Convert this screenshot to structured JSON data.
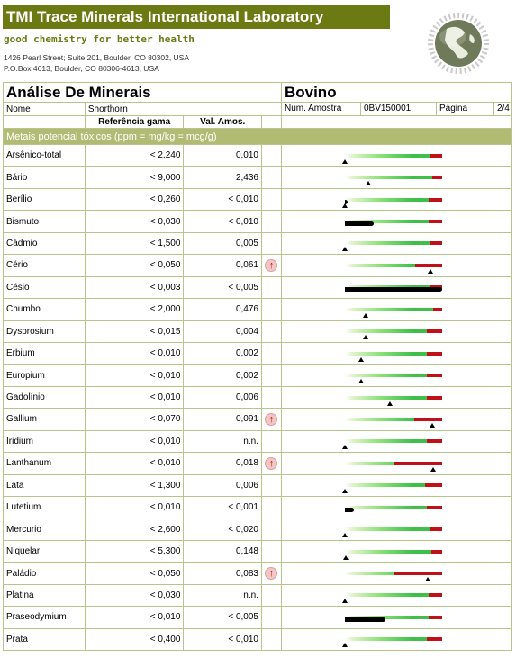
{
  "header": {
    "title": "TMI Trace Minerals International Laboratory",
    "slogan": "good chemistry for better health",
    "address1": "1426 Pearl Street; Suite 201, Boulder, CO 80302, USA",
    "address2": "P.O.Box 4613, Boulder, CO 80306-4613, USA"
  },
  "report": {
    "title": "Análise De Minerais",
    "species": "Bovino",
    "name_label": "Nome",
    "name_value": "Shorthorn",
    "sample_label": "Num. Amostra",
    "sample_value": "0BV150001",
    "page_label": "Página",
    "page_value": "2/4",
    "col_ref": "Referência gama",
    "col_val": "Val. Amos.",
    "section": "Metais potencial tóxicos (ppm = mg/kg = mcg/g)"
  },
  "colors": {
    "brand": "#6b7a12",
    "section": "#b2bb74",
    "red": "#c0101a",
    "green": "#3fbf4a"
  },
  "rows": [
    {
      "name": "Arsênico-total",
      "ref": "< 2,240",
      "val": "0,010",
      "flag": false,
      "level": 0.0,
      "red_from": 0.87,
      "fill": 0
    },
    {
      "name": "Bário",
      "ref": "< 9,000",
      "val": "2,436",
      "flag": false,
      "level": 0.24,
      "red_from": 0.9,
      "fill": 0
    },
    {
      "name": "Berílio",
      "ref": "< 0,260",
      "val": "< 0,010",
      "flag": false,
      "level": 0.0,
      "red_from": 0.86,
      "fill": 0.03
    },
    {
      "name": "Bismuto",
      "ref": "< 0,030",
      "val": "< 0,010",
      "flag": false,
      "level": null,
      "red_from": 0.86,
      "fill": 0.3
    },
    {
      "name": "Cádmio",
      "ref": "< 1,500",
      "val": "0,005",
      "flag": false,
      "level": 0.0,
      "red_from": 0.88,
      "fill": 0
    },
    {
      "name": "Cério",
      "ref": "< 0,050",
      "val": "0,061",
      "flag": true,
      "level": 0.88,
      "red_from": 0.72,
      "fill": 0
    },
    {
      "name": "Césio",
      "ref": "< 0,003",
      "val": "< 0,005",
      "flag": false,
      "level": null,
      "red_from": 0.87,
      "fill": 1.0
    },
    {
      "name": "Chumbo",
      "ref": "< 2,000",
      "val": "0,476",
      "flag": false,
      "level": 0.21,
      "red_from": 0.91,
      "fill": 0
    },
    {
      "name": "Dysprosium",
      "ref": "< 0,015",
      "val": "0,004",
      "flag": false,
      "level": 0.21,
      "red_from": 0.84,
      "fill": 0
    },
    {
      "name": "Erbium",
      "ref": "< 0,010",
      "val": "0,002",
      "flag": false,
      "level": 0.17,
      "red_from": 0.84,
      "fill": 0
    },
    {
      "name": "Europium",
      "ref": "< 0,010",
      "val": "0,002",
      "flag": false,
      "level": 0.17,
      "red_from": 0.84,
      "fill": 0
    },
    {
      "name": "Gadolínio",
      "ref": "< 0,010",
      "val": "0,006",
      "flag": false,
      "level": 0.46,
      "red_from": 0.84,
      "fill": 0
    },
    {
      "name": "Gallium",
      "ref": "< 0,070",
      "val": "0,091",
      "flag": true,
      "level": 0.9,
      "red_from": 0.71,
      "fill": 0
    },
    {
      "name": "Iridium",
      "ref": "< 0,010",
      "val": "n.n.",
      "flag": false,
      "level": 0.0,
      "red_from": 0.84,
      "fill": 0
    },
    {
      "name": "Lanthanum",
      "ref": "< 0,010",
      "val": "0,018",
      "flag": true,
      "level": 0.91,
      "red_from": 0.5,
      "fill": 0
    },
    {
      "name": "Lata",
      "ref": "< 1,300",
      "val": "0,006",
      "flag": false,
      "level": 0.0,
      "red_from": 0.82,
      "fill": 0
    },
    {
      "name": "Lutetium",
      "ref": "< 0,010",
      "val": "< 0,001",
      "flag": false,
      "level": null,
      "red_from": 0.84,
      "fill": 0.09
    },
    {
      "name": "Mercurio",
      "ref": "< 2,600",
      "val": "< 0,020",
      "flag": false,
      "level": 0.0,
      "red_from": 0.88,
      "fill": 0
    },
    {
      "name": "Niquelar",
      "ref": "< 5,300",
      "val": "0,148",
      "flag": false,
      "level": 0.01,
      "red_from": 0.89,
      "fill": 0
    },
    {
      "name": "Paládio",
      "ref": "< 0,050",
      "val": "0,083",
      "flag": true,
      "level": 0.85,
      "red_from": 0.5,
      "fill": 0
    },
    {
      "name": "Platina",
      "ref": "< 0,030",
      "val": "n.n.",
      "flag": false,
      "level": 0.0,
      "red_from": 0.86,
      "fill": 0
    },
    {
      "name": "Praseodymium",
      "ref": "< 0,010",
      "val": "< 0,005",
      "flag": false,
      "level": null,
      "red_from": 0.86,
      "fill": 0.42
    },
    {
      "name": "Prata",
      "ref": "< 0,400",
      "val": "< 0,010",
      "flag": false,
      "level": 0.0,
      "red_from": 0.84,
      "fill": 0
    }
  ]
}
